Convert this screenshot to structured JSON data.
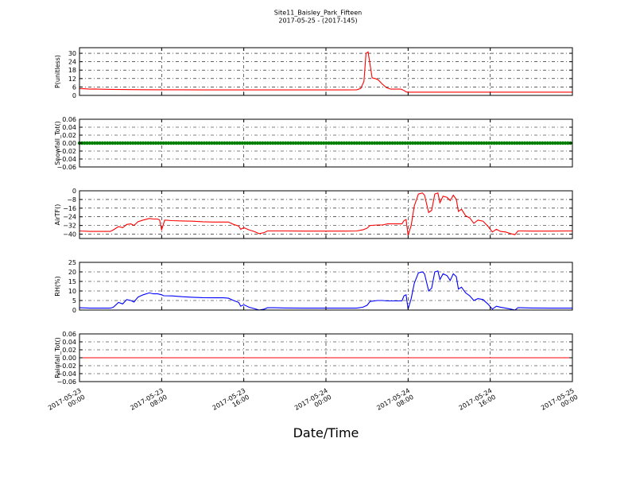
{
  "title_line1": "Site11_Baisley_Park_Fifteen",
  "title_line2": "2017-05-25 - (2017-145)",
  "xlabel": "Date/Time",
  "x_ticks": [
    {
      "line1": "2017-05-23",
      "line2": "00:00",
      "t": 0
    },
    {
      "line1": "2017-05-23",
      "line2": "08:00",
      "t": 8
    },
    {
      "line1": "2017-05-23",
      "line2": "16:00",
      "t": 16
    },
    {
      "line1": "2017-05-24",
      "line2": "00:00",
      "t": 24
    },
    {
      "line1": "2017-05-24",
      "line2": "08:00",
      "t": 32
    },
    {
      "line1": "2017-05-24",
      "line2": "16:00",
      "t": 40
    },
    {
      "line1": "2017-05-25",
      "line2": "00:00",
      "t": 48
    }
  ],
  "chart_data": [
    {
      "type": "line",
      "ylabel": "P(unitless)",
      "ylim": [
        0,
        34
      ],
      "yticks": [
        0,
        6,
        12,
        18,
        24,
        30
      ],
      "xlim_hours": [
        0,
        48
      ],
      "grid": true,
      "color": "#ff0000",
      "points": [
        [
          0,
          4.8
        ],
        [
          0.5,
          4.7
        ],
        [
          1,
          4.5
        ],
        [
          1.5,
          4.6
        ],
        [
          2,
          4.4
        ],
        [
          3,
          4.3
        ],
        [
          4,
          4.2
        ],
        [
          6,
          4.1
        ],
        [
          8,
          4.0
        ],
        [
          10,
          4.0
        ],
        [
          12,
          3.9
        ],
        [
          16,
          3.9
        ],
        [
          20,
          3.9
        ],
        [
          24,
          3.9
        ],
        [
          26,
          3.9
        ],
        [
          27,
          4.0
        ],
        [
          27.4,
          5.0
        ],
        [
          27.7,
          10.0
        ],
        [
          27.9,
          30.0
        ],
        [
          28.1,
          31.0
        ],
        [
          28.3,
          22.0
        ],
        [
          28.5,
          12.5
        ],
        [
          28.8,
          12.0
        ],
        [
          29.1,
          11.0
        ],
        [
          29.5,
          8.0
        ],
        [
          29.9,
          5.5
        ],
        [
          30.3,
          4.5
        ],
        [
          30.8,
          4.5
        ],
        [
          31.3,
          4.5
        ],
        [
          31.6,
          3.5
        ],
        [
          31.8,
          2.5
        ],
        [
          32,
          2.3
        ],
        [
          36,
          2.3
        ],
        [
          40,
          2.3
        ],
        [
          44,
          2.3
        ],
        [
          48,
          2.3
        ]
      ]
    },
    {
      "type": "line",
      "ylabel": "Snowfall_Tot()",
      "ylim": [
        -0.06,
        0.06
      ],
      "yticks": [
        -0.06,
        -0.04,
        -0.02,
        0.0,
        0.02,
        0.04,
        0.06
      ],
      "xlim_hours": [
        0,
        48
      ],
      "grid": true,
      "color": "#007f00",
      "marker": "dots",
      "points": [
        [
          0,
          0.0
        ],
        [
          48,
          0.0
        ]
      ]
    },
    {
      "type": "line",
      "ylabel": "AirTF()",
      "ylim": [
        -44,
        0
      ],
      "yticks": [
        -40,
        -32,
        -24,
        -16,
        -8,
        0
      ],
      "xlim_hours": [
        0,
        48
      ],
      "grid": true,
      "color": "#ff0000",
      "points": [
        [
          0,
          -37
        ],
        [
          1,
          -37.5
        ],
        [
          2,
          -37.5
        ],
        [
          3,
          -37.5
        ],
        [
          3.3,
          -36
        ],
        [
          3.8,
          -33
        ],
        [
          4.2,
          -34
        ],
        [
          4.6,
          -31
        ],
        [
          5,
          -30.5
        ],
        [
          5.3,
          -32
        ],
        [
          5.7,
          -28.5
        ],
        [
          6.2,
          -27
        ],
        [
          6.8,
          -25.5
        ],
        [
          7.2,
          -26
        ],
        [
          7.6,
          -26
        ],
        [
          7.8,
          -27
        ],
        [
          8.0,
          -36
        ],
        [
          8.3,
          -27
        ],
        [
          9,
          -27.5
        ],
        [
          10,
          -27.8
        ],
        [
          11,
          -28
        ],
        [
          12,
          -28.5
        ],
        [
          13,
          -28.8
        ],
        [
          14,
          -28.8
        ],
        [
          14.5,
          -28.8
        ],
        [
          15,
          -31
        ],
        [
          15.5,
          -32.5
        ],
        [
          15.7,
          -35.5
        ],
        [
          16,
          -34
        ],
        [
          16.5,
          -36
        ],
        [
          17,
          -37.5
        ],
        [
          17.5,
          -39.5
        ],
        [
          18,
          -38.5
        ],
        [
          18.3,
          -37
        ],
        [
          19,
          -37
        ],
        [
          20,
          -37
        ],
        [
          22,
          -37.2
        ],
        [
          24,
          -37.2
        ],
        [
          26,
          -37.2
        ],
        [
          27,
          -37
        ],
        [
          27.6,
          -36
        ],
        [
          28,
          -34.5
        ],
        [
          28.3,
          -32
        ],
        [
          29,
          -31.5
        ],
        [
          29.5,
          -31.5
        ],
        [
          30,
          -30.5
        ],
        [
          30.5,
          -30.5
        ],
        [
          31,
          -30.5
        ],
        [
          31.4,
          -30.5
        ],
        [
          31.6,
          -27.5
        ],
        [
          31.8,
          -26.5
        ],
        [
          32,
          -41
        ],
        [
          32.3,
          -32
        ],
        [
          32.6,
          -14
        ],
        [
          33,
          -3
        ],
        [
          33.4,
          -2
        ],
        [
          33.6,
          -4
        ],
        [
          34.0,
          -20
        ],
        [
          34.3,
          -18
        ],
        [
          34.6,
          -3
        ],
        [
          34.9,
          -2
        ],
        [
          35.1,
          -11
        ],
        [
          35.4,
          -5
        ],
        [
          35.8,
          -6
        ],
        [
          36.1,
          -9
        ],
        [
          36.4,
          -4
        ],
        [
          36.7,
          -8
        ],
        [
          36.9,
          -19
        ],
        [
          37.2,
          -17
        ],
        [
          37.6,
          -23
        ],
        [
          38,
          -25
        ],
        [
          38.4,
          -30
        ],
        [
          38.8,
          -27
        ],
        [
          39.3,
          -28
        ],
        [
          39.8,
          -33
        ],
        [
          40.2,
          -38
        ],
        [
          40.6,
          -35.5
        ],
        [
          41,
          -37.5
        ],
        [
          41.5,
          -38
        ],
        [
          42,
          -39.5
        ],
        [
          42.4,
          -40.5
        ],
        [
          42.7,
          -37
        ],
        [
          43,
          -37
        ],
        [
          44,
          -37.2
        ],
        [
          46,
          -37.2
        ],
        [
          48,
          -37
        ]
      ]
    },
    {
      "type": "line",
      "ylabel": "RH(%)",
      "ylim": [
        0,
        25
      ],
      "yticks": [
        0,
        5,
        10,
        15,
        20,
        25
      ],
      "xlim_hours": [
        0,
        48
      ],
      "grid": true,
      "color": "#0000ff",
      "points": [
        [
          0,
          1.2
        ],
        [
          1,
          1.0
        ],
        [
          2,
          1.0
        ],
        [
          3,
          1.0
        ],
        [
          3.3,
          1.5
        ],
        [
          3.8,
          4.0
        ],
        [
          4.2,
          3.2
        ],
        [
          4.6,
          5.5
        ],
        [
          5,
          5.0
        ],
        [
          5.3,
          4.2
        ],
        [
          5.7,
          6.8
        ],
        [
          6.2,
          8.0
        ],
        [
          6.8,
          9.0
        ],
        [
          7.2,
          8.5
        ],
        [
          7.6,
          8.5
        ],
        [
          8.0,
          8.0
        ],
        [
          8.2,
          7.5
        ],
        [
          9,
          7.4
        ],
        [
          10,
          7.0
        ],
        [
          11,
          6.7
        ],
        [
          12,
          6.5
        ],
        [
          13,
          6.4
        ],
        [
          14,
          6.4
        ],
        [
          14.5,
          6.2
        ],
        [
          15,
          5.0
        ],
        [
          15.5,
          4.0
        ],
        [
          15.7,
          2.0
        ],
        [
          16,
          2.8
        ],
        [
          16.5,
          1.5
        ],
        [
          17,
          0.8
        ],
        [
          17.5,
          0.0
        ],
        [
          18,
          0.5
        ],
        [
          18.3,
          1.2
        ],
        [
          19,
          1.2
        ],
        [
          20,
          1.1
        ],
        [
          22,
          1.0
        ],
        [
          24,
          1.0
        ],
        [
          26,
          1.0
        ],
        [
          27,
          1.0
        ],
        [
          27.6,
          1.5
        ],
        [
          28,
          2.5
        ],
        [
          28.3,
          4.5
        ],
        [
          29,
          5.0
        ],
        [
          29.5,
          5.0
        ],
        [
          30,
          4.8
        ],
        [
          30.5,
          4.8
        ],
        [
          31,
          4.8
        ],
        [
          31.4,
          4.8
        ],
        [
          31.6,
          7.5
        ],
        [
          31.8,
          8.0
        ],
        [
          32,
          0.5
        ],
        [
          32.3,
          6.0
        ],
        [
          32.6,
          14.0
        ],
        [
          33,
          19.5
        ],
        [
          33.4,
          20.0
        ],
        [
          33.6,
          19.0
        ],
        [
          34.0,
          10.0
        ],
        [
          34.3,
          11.5
        ],
        [
          34.6,
          20.0
        ],
        [
          34.9,
          20.5
        ],
        [
          35.1,
          16.0
        ],
        [
          35.4,
          19.0
        ],
        [
          35.8,
          18.0
        ],
        [
          36.1,
          15.5
        ],
        [
          36.4,
          19.0
        ],
        [
          36.7,
          17.5
        ],
        [
          36.9,
          11.0
        ],
        [
          37.2,
          12.0
        ],
        [
          37.6,
          9.0
        ],
        [
          38,
          7.5
        ],
        [
          38.4,
          5.0
        ],
        [
          38.8,
          6.0
        ],
        [
          39.3,
          5.5
        ],
        [
          39.8,
          3.0
        ],
        [
          40.2,
          0.5
        ],
        [
          40.6,
          2.0
        ],
        [
          41,
          1.5
        ],
        [
          41.5,
          1.0
        ],
        [
          42,
          0.5
        ],
        [
          42.4,
          0.0
        ],
        [
          42.7,
          1.2
        ],
        [
          43,
          1.2
        ],
        [
          44,
          1.1
        ],
        [
          46,
          1.0
        ],
        [
          48,
          1.0
        ]
      ]
    },
    {
      "type": "line",
      "ylabel": "Rainfall_Tot()",
      "ylim": [
        -0.06,
        0.06
      ],
      "yticks": [
        -0.06,
        -0.04,
        -0.02,
        0.0,
        0.02,
        0.04,
        0.06
      ],
      "xlim_hours": [
        0,
        48
      ],
      "grid": true,
      "color": "#ff0000",
      "points": [
        [
          0,
          0.0
        ],
        [
          48,
          0.0
        ]
      ]
    }
  ]
}
